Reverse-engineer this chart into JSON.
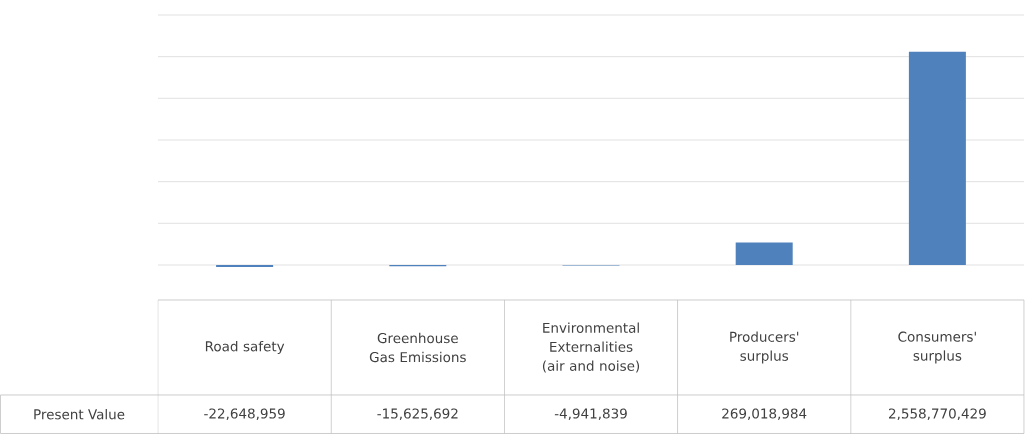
{
  "chart_data": {
    "type": "bar",
    "categories": [
      "Road safety",
      "Greenhouse Gas Emissions",
      "Environmental Externalities (air and noise)",
      "Producers' surplus",
      "Consumers' surplus"
    ],
    "series": [
      {
        "name": "Present Value",
        "color": "#4f81bd",
        "values": [
          -22648959,
          -15625692,
          -4941839,
          269018984,
          2558770429
        ],
        "value_labels": [
          "-22,648,959",
          "-15,625,692",
          "-4,941,839",
          "269,018,984",
          "2,558,770,429"
        ]
      }
    ],
    "yticks": [
      {
        "value": 0,
        "label": null
      },
      {
        "value": 500000000,
        "label": null
      },
      {
        "value": 1000000000,
        "label": null
      },
      {
        "value": 1500000000,
        "label": null
      },
      {
        "value": 2000000000,
        "label": null
      },
      {
        "value": 2500000000,
        "label": null
      },
      {
        "value": 3000000000,
        "label": null
      }
    ],
    "grid": "y"
  }
}
